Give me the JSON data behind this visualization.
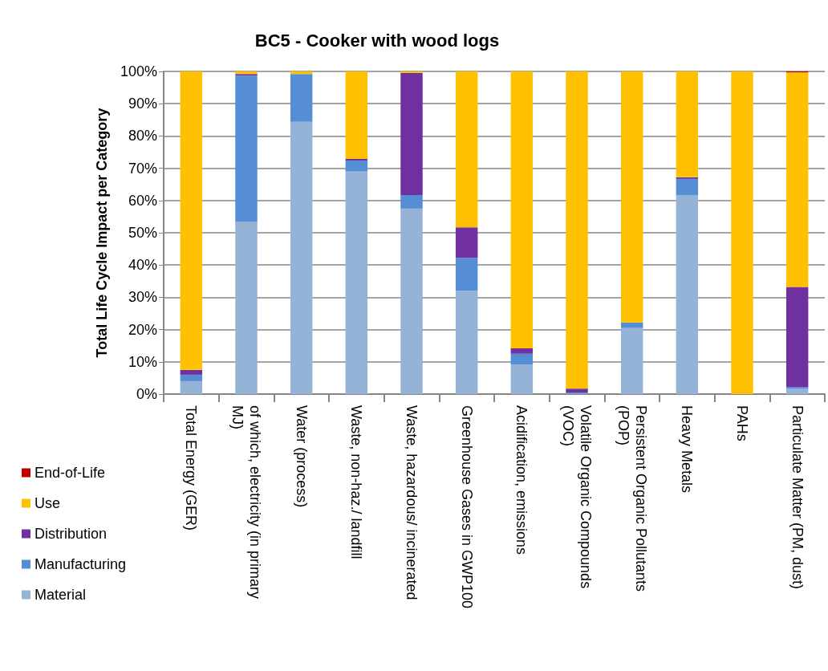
{
  "chart_data": {
    "type": "bar",
    "title": "BC5 - Cooker with wood logs",
    "ylabel": "Total Life Cycle Impact per Category",
    "categories": [
      "Total Energy (GER)",
      "of which, electricity (in primary MJ)",
      "Water (process)",
      "Waste, non-haz./ landfill",
      "Waste, hazardous/ incinerated",
      "Greenhouse Gases in GWP100",
      "Acidification, emissions",
      "Volatile Organic Compounds (VOC)",
      "Persistent Organic Pollutants (POP)",
      "Heavy Metals",
      "PAHs",
      "Particulate Matter (PM, dust)"
    ],
    "stacked": true,
    "series": [
      {
        "name": "Material",
        "color": "#95b3d7",
        "values": [
          4.0,
          53.5,
          84.4,
          69.0,
          57.5,
          32.0,
          9.2,
          0.2,
          20.5,
          61.7,
          0,
          1.7
        ]
      },
      {
        "name": "Manufacturing",
        "color": "#558ed5",
        "values": [
          2.0,
          45.2,
          14.8,
          3.4,
          4.2,
          10.2,
          3.3,
          0.3,
          1.7,
          5.0,
          0,
          0.5
        ]
      },
      {
        "name": "Distribution",
        "color": "#7030a0",
        "values": [
          1.5,
          0.5,
          0,
          0.5,
          37.8,
          9.5,
          1.7,
          1.2,
          0,
          0.5,
          0,
          31.0
        ]
      },
      {
        "name": "Use",
        "color": "#ffc000",
        "values": [
          92.5,
          0.8,
          0.8,
          27.1,
          0.5,
          48.3,
          85.8,
          98.3,
          77.8,
          32.8,
          100,
          66.5
        ]
      },
      {
        "name": "End-of-Life",
        "color": "#c00000",
        "values": [
          0,
          0,
          0,
          0,
          0,
          0,
          0,
          0,
          0,
          0,
          0,
          0.3
        ]
      }
    ],
    "ylim": [
      0,
      100
    ],
    "yticks": [
      {
        "value": 0,
        "label": "0%"
      },
      {
        "value": 10,
        "label": "10%"
      },
      {
        "value": 20,
        "label": "20%"
      },
      {
        "value": 30,
        "label": "30%"
      },
      {
        "value": 40,
        "label": "40%"
      },
      {
        "value": 50,
        "label": "50%"
      },
      {
        "value": 60,
        "label": "60%"
      },
      {
        "value": 70,
        "label": "70%"
      },
      {
        "value": 80,
        "label": "80%"
      },
      {
        "value": 90,
        "label": "90%"
      },
      {
        "value": 100,
        "label": "100%"
      }
    ],
    "grid": "y",
    "legend": "bottom left"
  }
}
